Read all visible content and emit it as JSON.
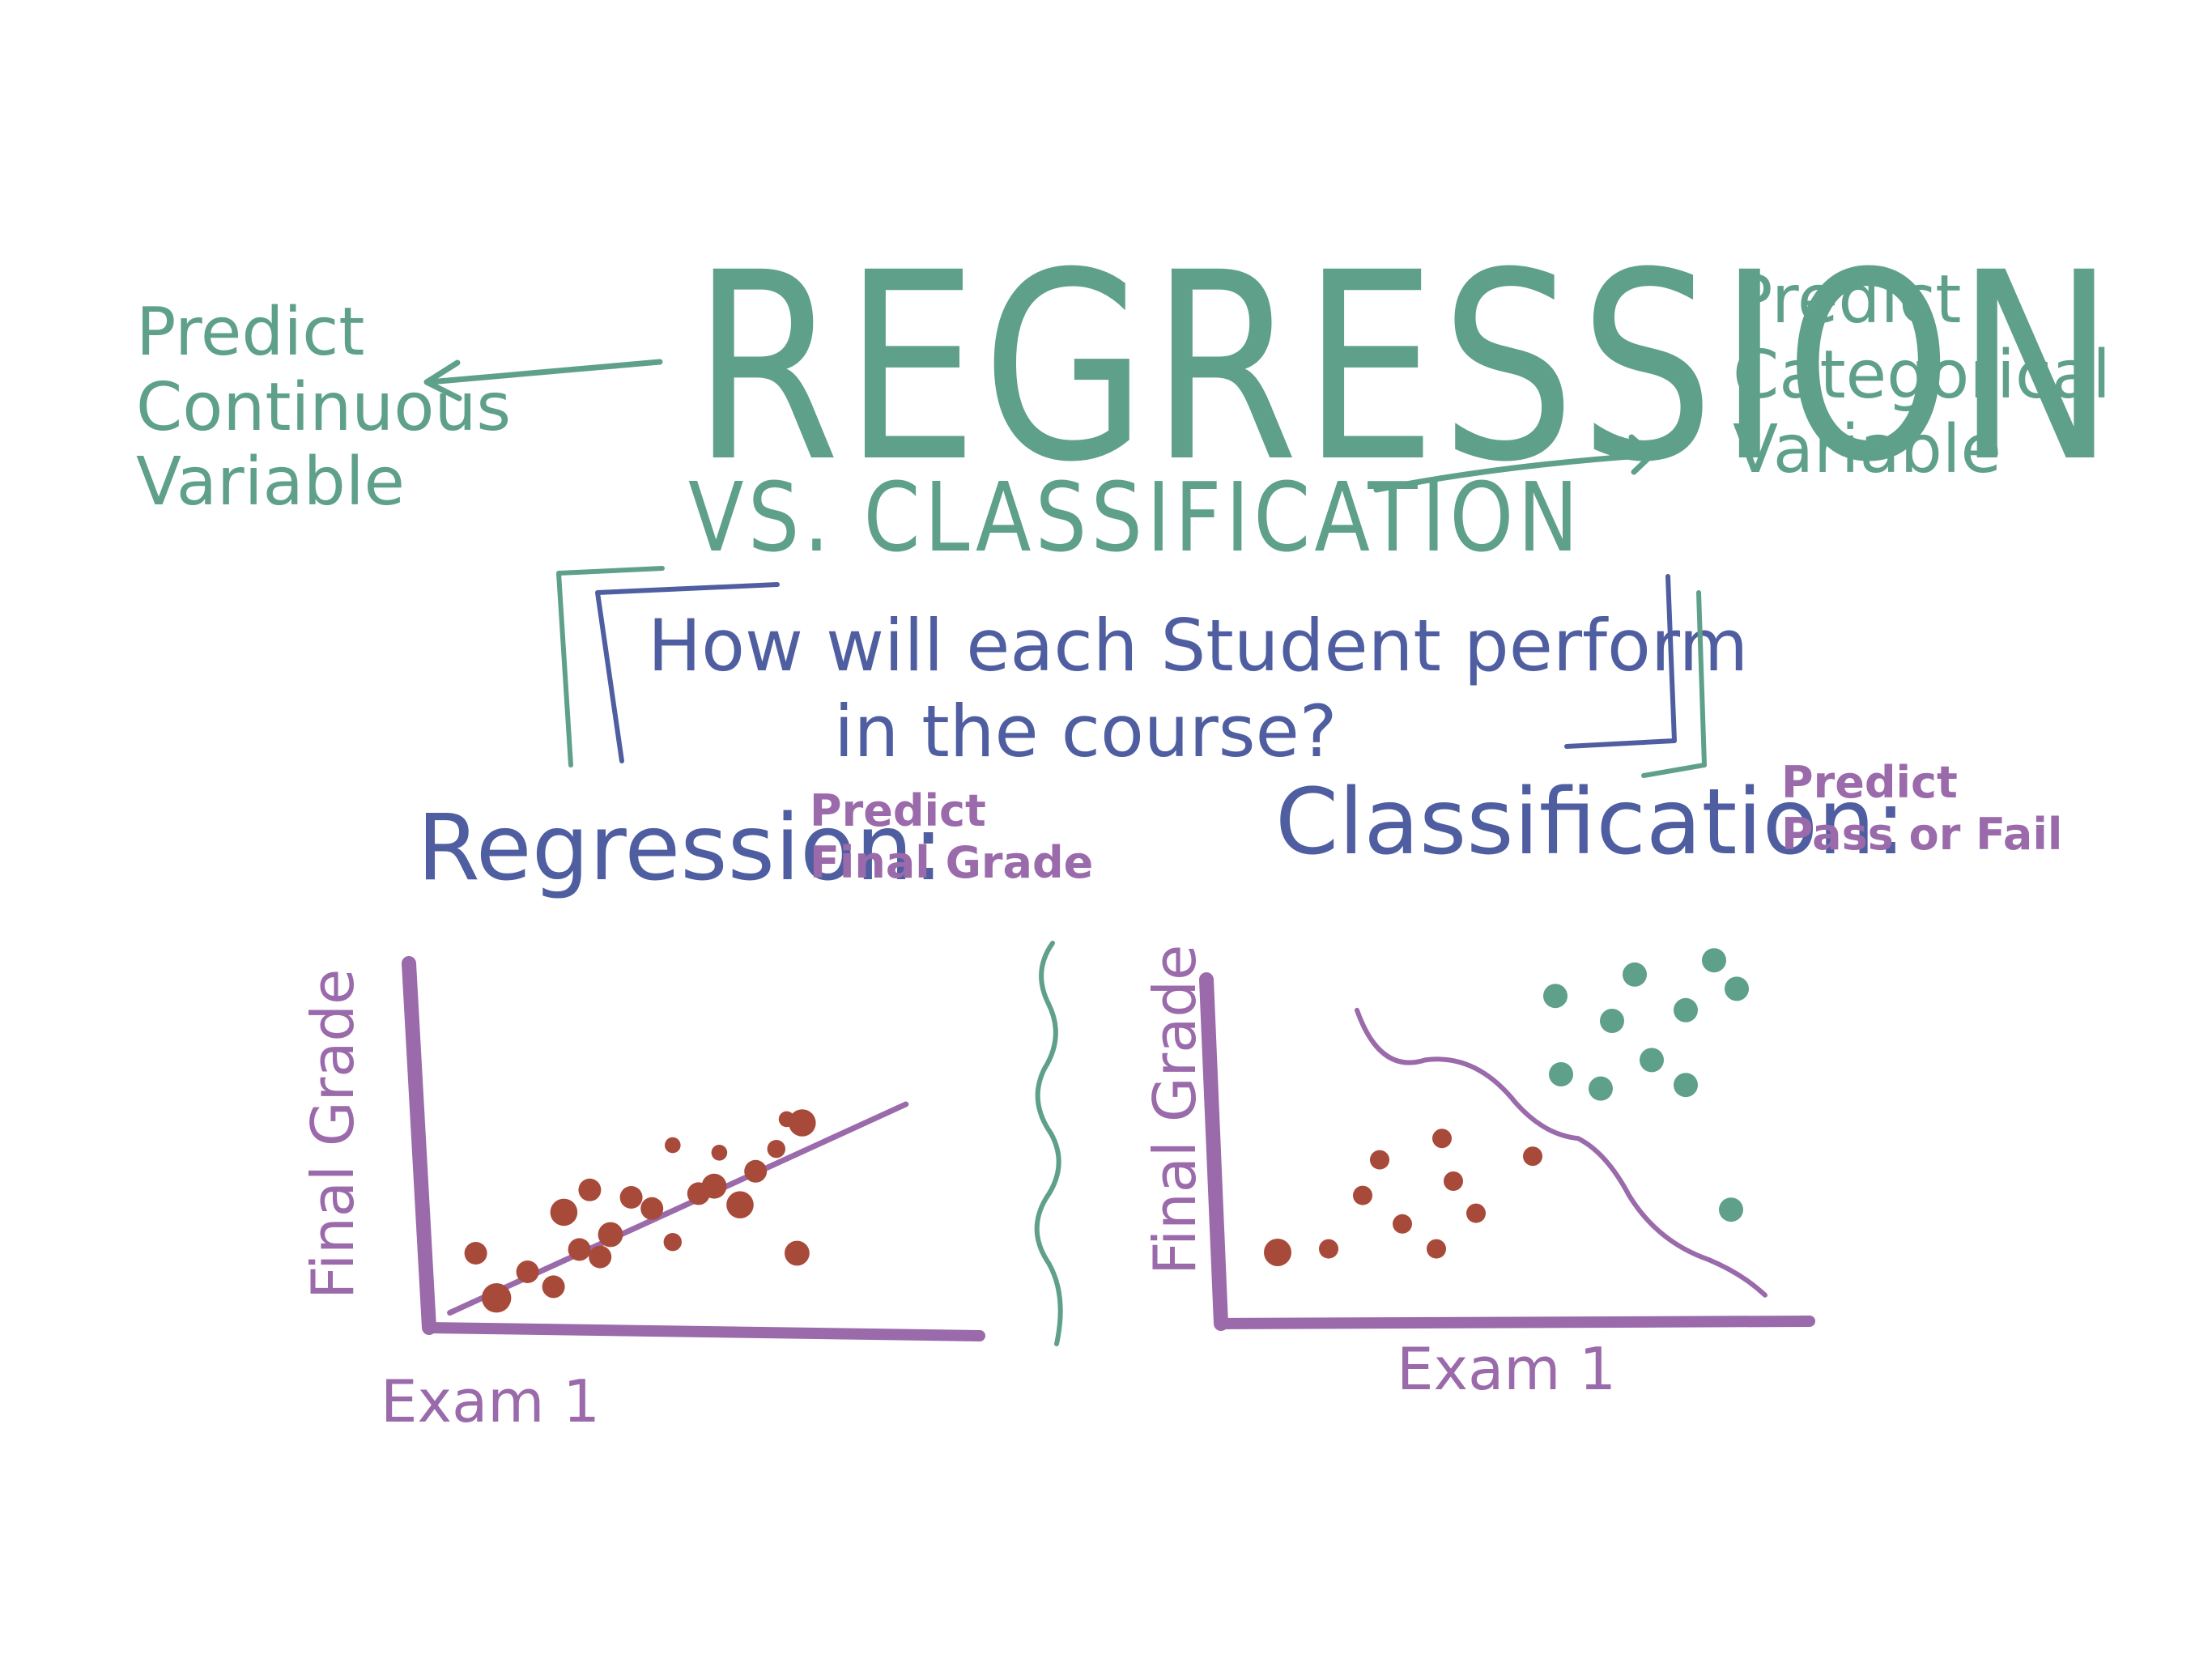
{
  "title": "REGRESSION",
  "subtitle": "VS. CLASSIFICATION",
  "left_note": [
    "Predict",
    "Continuous",
    "Variable"
  ],
  "right_note": [
    "Predict",
    "Categorical",
    "Variable"
  ],
  "question": [
    "How will each Student perform",
    "in the course?"
  ],
  "regression": {
    "label": "Regression:",
    "desc": [
      "Predict",
      "Final Grade"
    ],
    "chart": {
      "type": "scatter",
      "xlabel": "Exam 1",
      "ylabel": "Final Grade",
      "points": [
        [
          0.09,
          0.2
        ],
        [
          0.13,
          0.08
        ],
        [
          0.19,
          0.15
        ],
        [
          0.24,
          0.11
        ],
        [
          0.26,
          0.31
        ],
        [
          0.29,
          0.21
        ],
        [
          0.31,
          0.37
        ],
        [
          0.33,
          0.19
        ],
        [
          0.35,
          0.25
        ],
        [
          0.39,
          0.35
        ],
        [
          0.43,
          0.32
        ],
        [
          0.47,
          0.23
        ],
        [
          0.47,
          0.49
        ],
        [
          0.52,
          0.36
        ],
        [
          0.55,
          0.38
        ],
        [
          0.56,
          0.47
        ],
        [
          0.6,
          0.33
        ],
        [
          0.63,
          0.42
        ],
        [
          0.67,
          0.48
        ],
        [
          0.71,
          0.2
        ],
        [
          0.72,
          0.55
        ],
        [
          0.69,
          0.56
        ]
      ],
      "sizes": [
        1,
        1.3,
        1,
        1,
        1.2,
        1,
        1,
        1,
        1.1,
        1,
        1,
        0.8,
        0.7,
        1,
        1.1,
        0.7,
        1.2,
        1,
        0.8,
        1.1,
        1.2,
        0.7
      ],
      "color": "#a84a3a",
      "line_color": "#9a6aab"
    }
  },
  "classification": {
    "label": "Classification:",
    "desc": [
      "Predict",
      "Pass or Fail"
    ],
    "chart": {
      "type": "scatter",
      "xlabel": "Exam 1",
      "ylabel": "Final Grade",
      "fail_points": [
        [
          0.1,
          0.2
        ],
        [
          0.19,
          0.21
        ],
        [
          0.25,
          0.36
        ],
        [
          0.28,
          0.46
        ],
        [
          0.32,
          0.28
        ],
        [
          0.38,
          0.21
        ],
        [
          0.39,
          0.52
        ],
        [
          0.41,
          0.4
        ],
        [
          0.45,
          0.31
        ],
        [
          0.55,
          0.47
        ]
      ],
      "pass_points": [
        [
          0.59,
          0.92
        ],
        [
          0.6,
          0.7
        ],
        [
          0.67,
          0.66
        ],
        [
          0.69,
          0.85
        ],
        [
          0.73,
          0.98
        ],
        [
          0.76,
          0.74
        ],
        [
          0.82,
          0.88
        ],
        [
          0.82,
          0.67
        ],
        [
          0.87,
          1.02
        ],
        [
          0.91,
          0.94
        ],
        [
          0.9,
          0.32
        ]
      ],
      "fail_color": "#a84a3a",
      "pass_color": "#5fa08a",
      "boundary_color": "#9a6aab"
    }
  },
  "colors": {
    "teal": "#5fa08a",
    "navy": "#4f5ea0",
    "purple": "#9a6aab",
    "red": "#a84a3a"
  }
}
